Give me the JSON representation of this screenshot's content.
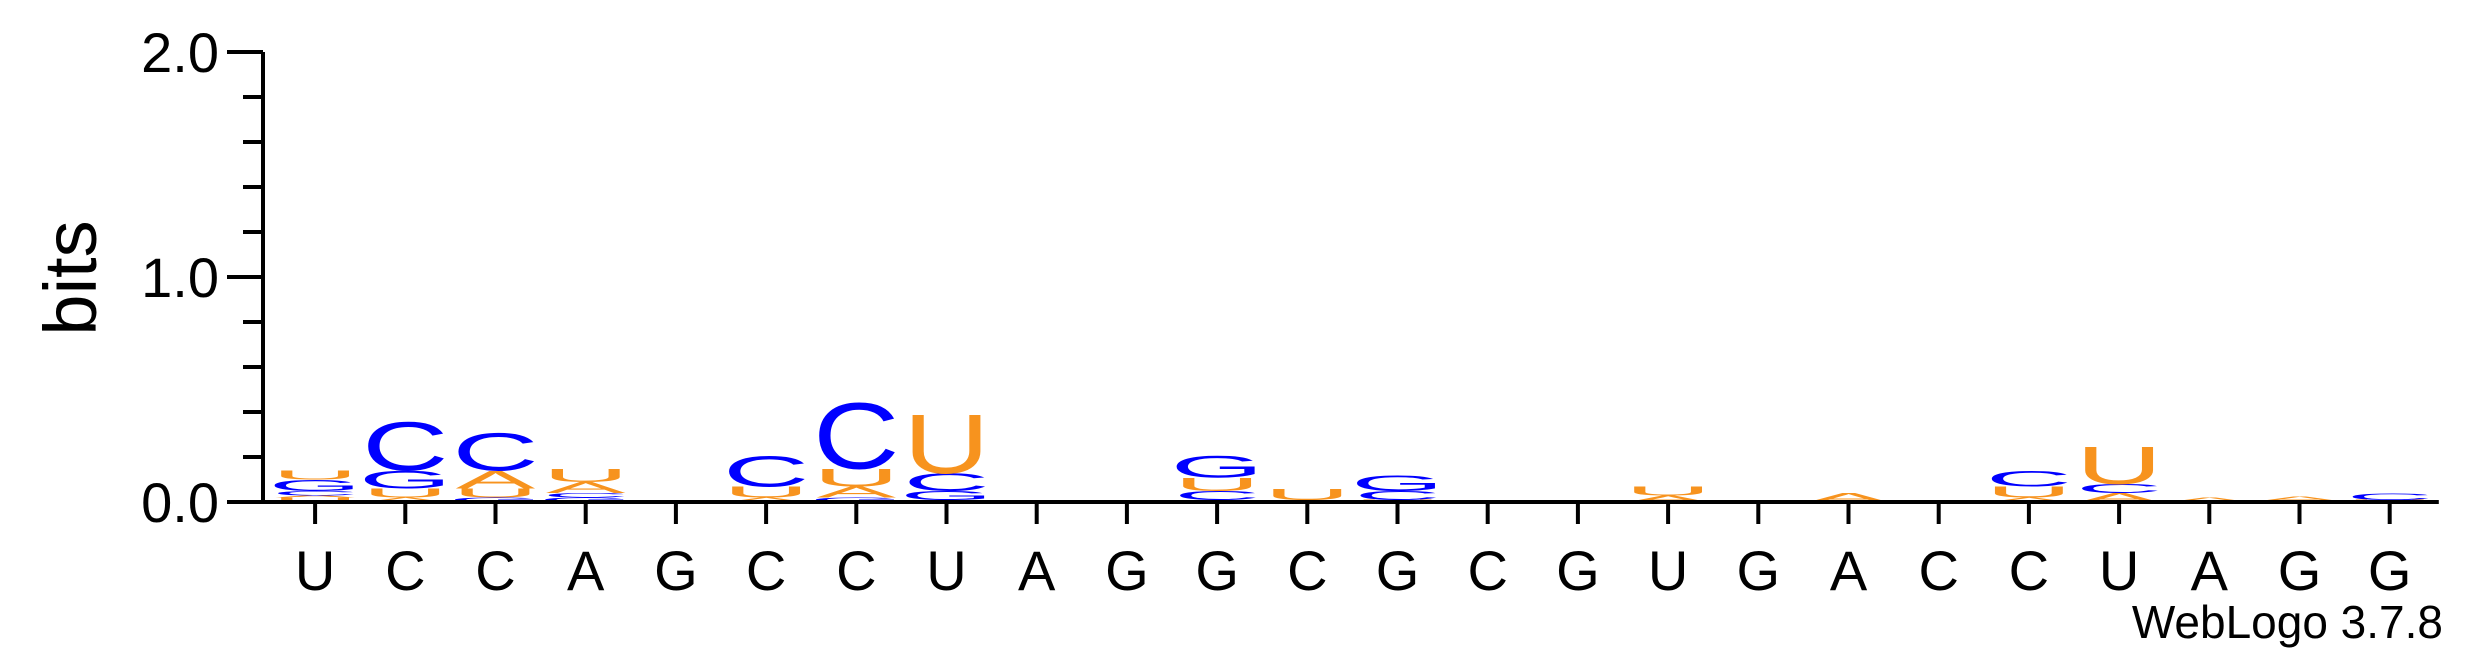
{
  "chart_data": {
    "type": "sequence-logo",
    "ylabel": "bits",
    "ylim": [
      0,
      2.0
    ],
    "y_ticks": [
      "0.0",
      "1.0",
      "2.0"
    ],
    "x_labels": [
      "U",
      "C",
      "C",
      "A",
      "G",
      "C",
      "C",
      "U",
      "A",
      "G",
      "G",
      "C",
      "G",
      "C",
      "G",
      "U",
      "G",
      "A",
      "C",
      "C",
      "U",
      "A",
      "G",
      "G"
    ],
    "colors": {
      "A": "#f7931e",
      "U": "#f7931e",
      "C": "#0000ff",
      "G": "#0000ff"
    },
    "positions": [
      {
        "letters": [
          {
            "l": "U",
            "h": 0.02
          },
          {
            "l": "A",
            "h": 0.01
          },
          {
            "l": "C",
            "h": 0.02
          },
          {
            "l": "G",
            "h": 0.05
          },
          {
            "l": "U",
            "h": 0.04
          }
        ]
      },
      {
        "letters": [
          {
            "l": "A",
            "h": 0.02
          },
          {
            "l": "U",
            "h": 0.04
          },
          {
            "l": "G",
            "h": 0.08
          },
          {
            "l": "C",
            "h": 0.22
          }
        ]
      },
      {
        "letters": [
          {
            "l": "G",
            "h": 0.02
          },
          {
            "l": "U",
            "h": 0.04
          },
          {
            "l": "A",
            "h": 0.08
          },
          {
            "l": "C",
            "h": 0.17
          }
        ]
      },
      {
        "letters": [
          {
            "l": "G",
            "h": 0.02
          },
          {
            "l": "C",
            "h": 0.02
          },
          {
            "l": "A",
            "h": 0.05
          },
          {
            "l": "U",
            "h": 0.06
          }
        ]
      },
      {
        "letters": [
          {
            "l": "A",
            "h": 0.005
          }
        ]
      },
      {
        "letters": [
          {
            "l": "A",
            "h": 0.02
          },
          {
            "l": "U",
            "h": 0.05
          },
          {
            "l": "C",
            "h": 0.14
          }
        ]
      },
      {
        "letters": [
          {
            "l": "G",
            "h": 0.02
          },
          {
            "l": "A",
            "h": 0.05
          },
          {
            "l": "U",
            "h": 0.08
          },
          {
            "l": "C",
            "h": 0.3
          }
        ]
      },
      {
        "letters": [
          {
            "l": "A",
            "h": 0.01
          },
          {
            "l": "G",
            "h": 0.04
          },
          {
            "l": "C",
            "h": 0.08
          },
          {
            "l": "U",
            "h": 0.27
          }
        ]
      },
      {
        "letters": [
          {
            "l": "A",
            "h": 0.005
          }
        ]
      },
      {
        "letters": [
          {
            "l": "C",
            "h": 0.005
          }
        ]
      },
      {
        "letters": [
          {
            "l": "A",
            "h": 0.01
          },
          {
            "l": "C",
            "h": 0.04
          },
          {
            "l": "U",
            "h": 0.06
          },
          {
            "l": "G",
            "h": 0.1
          }
        ]
      },
      {
        "letters": [
          {
            "l": "A",
            "h": 0.01
          },
          {
            "l": "U",
            "h": 0.05
          }
        ]
      },
      {
        "letters": [
          {
            "l": "U",
            "h": 0.01
          },
          {
            "l": "C",
            "h": 0.04
          },
          {
            "l": "G",
            "h": 0.07
          }
        ]
      },
      {
        "letters": [
          {
            "l": "A",
            "h": 0.005
          }
        ]
      },
      {
        "letters": [
          {
            "l": "G",
            "h": 0.005
          }
        ]
      },
      {
        "letters": [
          {
            "l": "A",
            "h": 0.03
          },
          {
            "l": "U",
            "h": 0.04
          }
        ]
      },
      {
        "letters": [
          {
            "l": "C",
            "h": 0.005
          }
        ]
      },
      {
        "letters": [
          {
            "l": "A",
            "h": 0.04
          }
        ]
      },
      {
        "letters": []
      },
      {
        "letters": [
          {
            "l": "A",
            "h": 0.02
          },
          {
            "l": "U",
            "h": 0.05
          },
          {
            "l": "C",
            "h": 0.07
          }
        ]
      },
      {
        "letters": [
          {
            "l": "A",
            "h": 0.04
          },
          {
            "l": "C",
            "h": 0.04
          },
          {
            "l": "U",
            "h": 0.17
          }
        ]
      },
      {
        "letters": [
          {
            "l": "A",
            "h": 0.02
          }
        ]
      },
      {
        "letters": [
          {
            "l": "G",
            "h": 0.005
          },
          {
            "l": "A",
            "h": 0.02
          }
        ]
      },
      {
        "letters": [
          {
            "l": "U",
            "h": 0.01
          },
          {
            "l": "C",
            "h": 0.03
          }
        ]
      }
    ]
  },
  "credit": "WebLogo 3.7.8"
}
